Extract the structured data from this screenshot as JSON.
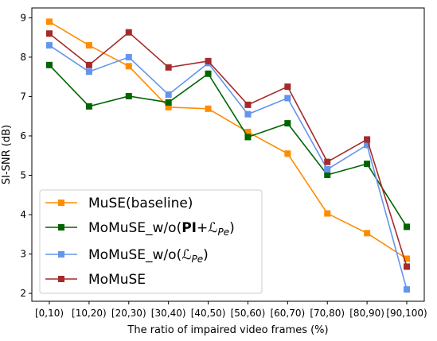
{
  "chart_data": {
    "type": "line",
    "title": "",
    "xlabel": "The ratio of impaired video frames (%)",
    "ylabel": "SI-SNR (dB)",
    "categories": [
      "[0,10)",
      "[10,20)",
      "[20,30)",
      "[30,40)",
      "[40,50)",
      "[50,60)",
      "[60,70)",
      "[70,80)",
      "[80,90)",
      "[90,100)"
    ],
    "ylim": [
      1.8,
      9.25
    ],
    "yticks": [
      2,
      3,
      4,
      5,
      6,
      7,
      8,
      9
    ],
    "grid": false,
    "legend_position": "lower-left",
    "marker": "square",
    "series": [
      {
        "name": "MuSE(baseline)",
        "name_parts": [
          {
            "t": "MuSE(baseline)",
            "style": "normal"
          }
        ],
        "color": "#ff8c00",
        "values": [
          8.9,
          8.3,
          7.77,
          6.73,
          6.69,
          6.1,
          5.55,
          4.03,
          3.53,
          2.88
        ]
      },
      {
        "name": "MoMuSE_w/o(PI+ℒPe)",
        "name_parts": [
          {
            "t": "MoMuSE_w/o(",
            "style": "normal"
          },
          {
            "t": "PI",
            "style": "bold"
          },
          {
            "t": "+ℒ",
            "style": "italic"
          },
          {
            "t": "Pe",
            "style": "sub"
          },
          {
            "t": ")",
            "style": "normal"
          }
        ],
        "color": "#006400",
        "values": [
          7.8,
          6.75,
          7.01,
          6.85,
          7.58,
          5.97,
          6.32,
          5.01,
          5.29,
          3.69
        ]
      },
      {
        "name": "MoMuSE_w/o(ℒPe)",
        "name_parts": [
          {
            "t": "MoMuSE_w/o(",
            "style": "normal"
          },
          {
            "t": "ℒ",
            "style": "italic"
          },
          {
            "t": "Pe",
            "style": "sub"
          },
          {
            "t": ")",
            "style": "normal"
          }
        ],
        "color": "#6495ed",
        "values": [
          8.3,
          7.63,
          8.0,
          7.05,
          7.85,
          6.55,
          6.96,
          5.15,
          5.77,
          2.1
        ]
      },
      {
        "name": "MoMuSE",
        "name_parts": [
          {
            "t": "MoMuSE",
            "style": "normal"
          }
        ],
        "color": "#a52a2a",
        "values": [
          8.6,
          7.8,
          8.63,
          7.74,
          7.9,
          6.79,
          7.25,
          5.34,
          5.91,
          2.68
        ]
      }
    ]
  }
}
